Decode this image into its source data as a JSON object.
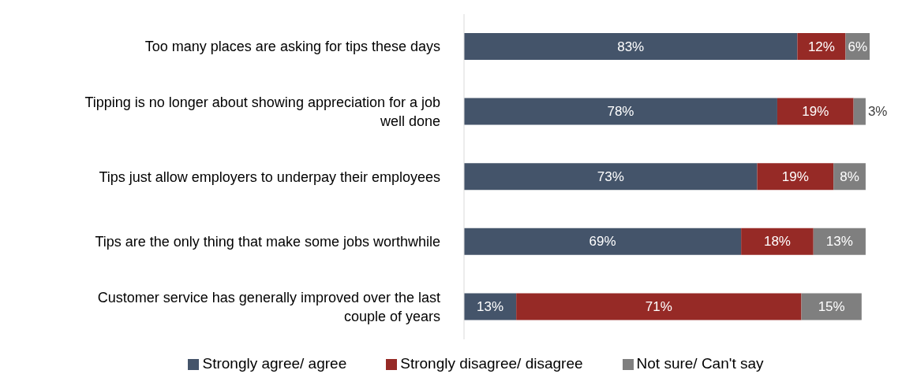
{
  "chart_data": {
    "type": "bar",
    "orientation": "horizontal",
    "stacked": true,
    "data_labels": true,
    "legend": "bottom",
    "tick_labels": "y",
    "grid": false,
    "categories": [
      "Too many places are asking for tips these days",
      "Tipping is no longer about showing appreciation for a job well done",
      "Tips just allow employers to underpay their employees",
      "Tips are the only thing that make some jobs worthwhile",
      "Customer service has generally improved over the last couple of years"
    ],
    "series": [
      {
        "name": "Strongly agree/ agree",
        "color": "#44546a",
        "values": [
          83,
          78,
          73,
          69,
          13
        ],
        "value_labels": [
          "83%",
          "78%",
          "73%",
          "69%",
          "13%"
        ]
      },
      {
        "name": "Strongly disagree/ disagree",
        "color": "#962a26",
        "values": [
          12,
          19,
          19,
          18,
          71
        ],
        "value_labels": [
          "12%",
          "19%",
          "19%",
          "18%",
          "71%"
        ]
      },
      {
        "name": "Not sure/ Can't say",
        "color": "#7f7f7f",
        "values": [
          6,
          3,
          8,
          13,
          15
        ],
        "value_labels": [
          "6%",
          "3%",
          "8%",
          "13%",
          "15%"
        ]
      }
    ]
  }
}
